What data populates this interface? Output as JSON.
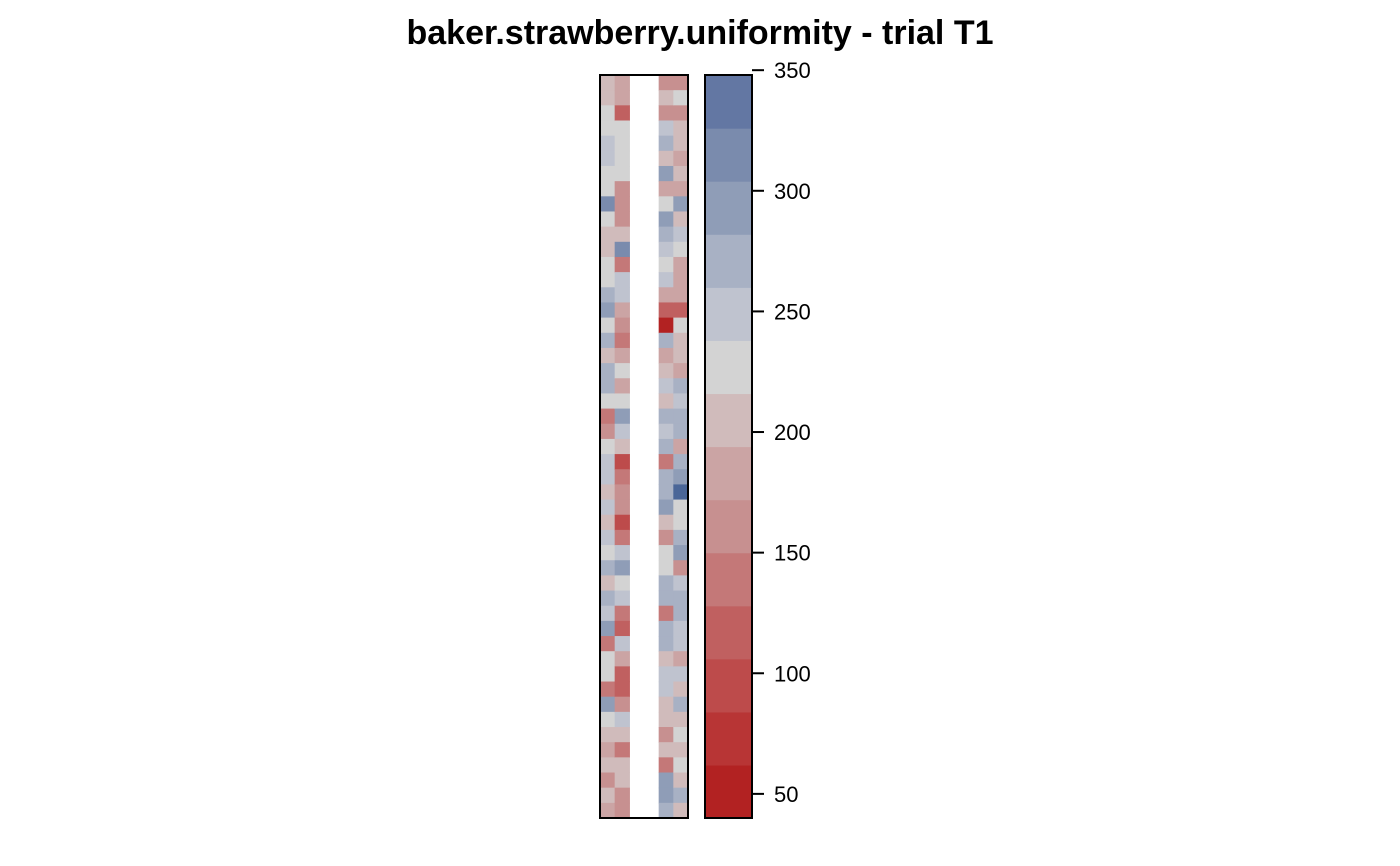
{
  "chart_data": {
    "type": "heatmap",
    "title": "baker.strawberry.uniformity - trial T1",
    "grid_columns": 6,
    "grid_rows": 49,
    "missing_columns": [
      2,
      3
    ],
    "columns": [
      [
        210,
        210,
        235,
        235,
        250,
        250,
        230,
        230,
        320,
        220,
        200,
        200,
        235,
        220,
        280,
        300,
        235,
        270,
        210,
        270,
        270,
        220,
        130,
        170,
        220,
        240,
        245,
        200,
        240,
        200,
        250,
        230,
        280,
        210,
        270,
        240,
        300,
        150,
        235,
        235,
        130,
        300,
        230,
        200,
        190,
        200,
        160,
        210,
        180
      ],
      [
        190,
        190,
        110,
        220,
        220,
        220,
        220,
        170,
        170,
        170,
        200,
        320,
        150,
        240,
        250,
        185,
        170,
        150,
        190,
        220,
        190,
        220,
        300,
        250,
        215,
        90,
        140,
        170,
        160,
        90,
        130,
        250,
        300,
        220,
        250,
        140,
        115,
        240,
        185,
        110,
        110,
        170,
        250,
        215,
        150,
        200,
        200,
        170,
        170
      ],
      [],
      [],
      [
        160,
        210,
        160,
        240,
        270,
        200,
        290,
        180,
        230,
        290,
        270,
        260,
        220,
        260,
        180,
        120,
        60,
        270,
        180,
        210,
        260,
        205,
        270,
        240,
        270,
        150,
        270,
        280,
        290,
        200,
        170,
        220,
        220,
        270,
        270,
        150,
        270,
        280,
        210,
        260,
        260,
        200,
        200,
        170,
        215,
        130,
        290,
        290,
        270
      ],
      [
        160,
        220,
        160,
        210,
        200,
        180,
        200,
        190,
        290,
        210,
        250,
        230,
        180,
        180,
        190,
        120,
        230,
        210,
        200,
        190,
        270,
        240,
        270,
        270,
        190,
        270,
        290,
        350,
        230,
        220,
        270,
        290,
        160,
        260,
        280,
        270,
        260,
        250,
        190,
        240,
        200,
        270,
        210,
        220,
        200,
        220,
        200,
        270,
        200
      ]
    ],
    "colorbar": {
      "ticks": [
        50,
        100,
        150,
        200,
        250,
        300,
        350
      ],
      "breaks": [
        40,
        62,
        84,
        106,
        128,
        150,
        172,
        194,
        216,
        238,
        260,
        282,
        304,
        326,
        348
      ],
      "colors": [
        "#b22222",
        "#b83535",
        "#bd4b4b",
        "#c06060",
        "#c47878",
        "#c79090",
        "#cba4a4",
        "#d0bbbb",
        "#d3d3d3",
        "#bfc3cf",
        "#a8b1c4",
        "#8f9db7",
        "#7a8bad",
        "#6377a3",
        "#4a6698"
      ]
    }
  }
}
